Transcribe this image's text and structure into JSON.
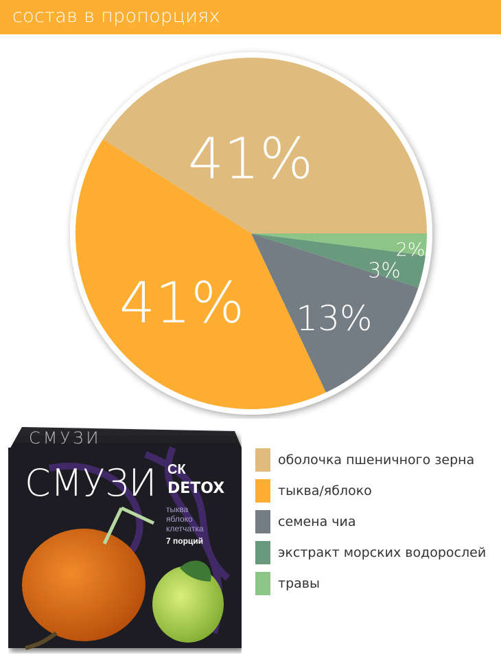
{
  "header": {
    "title": "состав в пропорциях"
  },
  "colors": {
    "header": "#fcaf33"
  },
  "chart_data": {
    "type": "pie",
    "title": "состав в пропорциях",
    "slices": [
      {
        "label": "оболочка пшеничного зерна",
        "value": 41,
        "display": "41%",
        "color": "#dfbb7e"
      },
      {
        "label": "тыква/яблоко",
        "value": 41,
        "display": "41%",
        "color": "#fdae32"
      },
      {
        "label": "семена чиа",
        "value": 13,
        "display": "13%",
        "color": "#757d84"
      },
      {
        "label": "экстракт морских водорослей",
        "value": 3,
        "display": "3%",
        "color": "#6a9a7d"
      },
      {
        "label": "травы",
        "value": 2,
        "display": "2%",
        "color": "#8dc487"
      }
    ],
    "start": "east",
    "direction": "counterclockwise",
    "legend": "bottom-right"
  },
  "product": {
    "brand": "СМУЗИ",
    "logo": "СК",
    "line": "DETOX",
    "top_text": "тыква, яблоко, клетчатка",
    "ingredients": [
      "тыква",
      "яблоко",
      "клетчатка"
    ],
    "portions": "7 порций"
  }
}
